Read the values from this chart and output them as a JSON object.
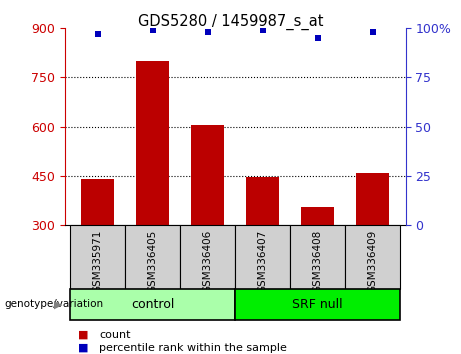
{
  "title": "GDS5280 / 1459987_s_at",
  "samples": [
    "GSM335971",
    "GSM336405",
    "GSM336406",
    "GSM336407",
    "GSM336408",
    "GSM336409"
  ],
  "counts": [
    440,
    800,
    605,
    445,
    355,
    458
  ],
  "percentile_ranks": [
    97,
    99,
    98,
    99,
    95,
    98
  ],
  "ymin": 300,
  "ymax": 900,
  "yticks": [
    300,
    450,
    600,
    750,
    900
  ],
  "y2min": 0,
  "y2max": 100,
  "y2ticks": [
    0,
    25,
    50,
    75,
    100
  ],
  "bar_color": "#bb0000",
  "dot_color": "#0000bb",
  "group_data": [
    {
      "label": "control",
      "indices": [
        0,
        1,
        2
      ],
      "color": "#aaffaa"
    },
    {
      "label": "SRF null",
      "indices": [
        3,
        4,
        5
      ],
      "color": "#00ee00"
    }
  ],
  "group_label_text": "genotype/variation",
  "legend_count_label": "count",
  "legend_pct_label": "percentile rank within the sample",
  "tick_color_left": "#cc0000",
  "tick_color_right": "#3333cc",
  "sample_box_color": "#d0d0d0"
}
